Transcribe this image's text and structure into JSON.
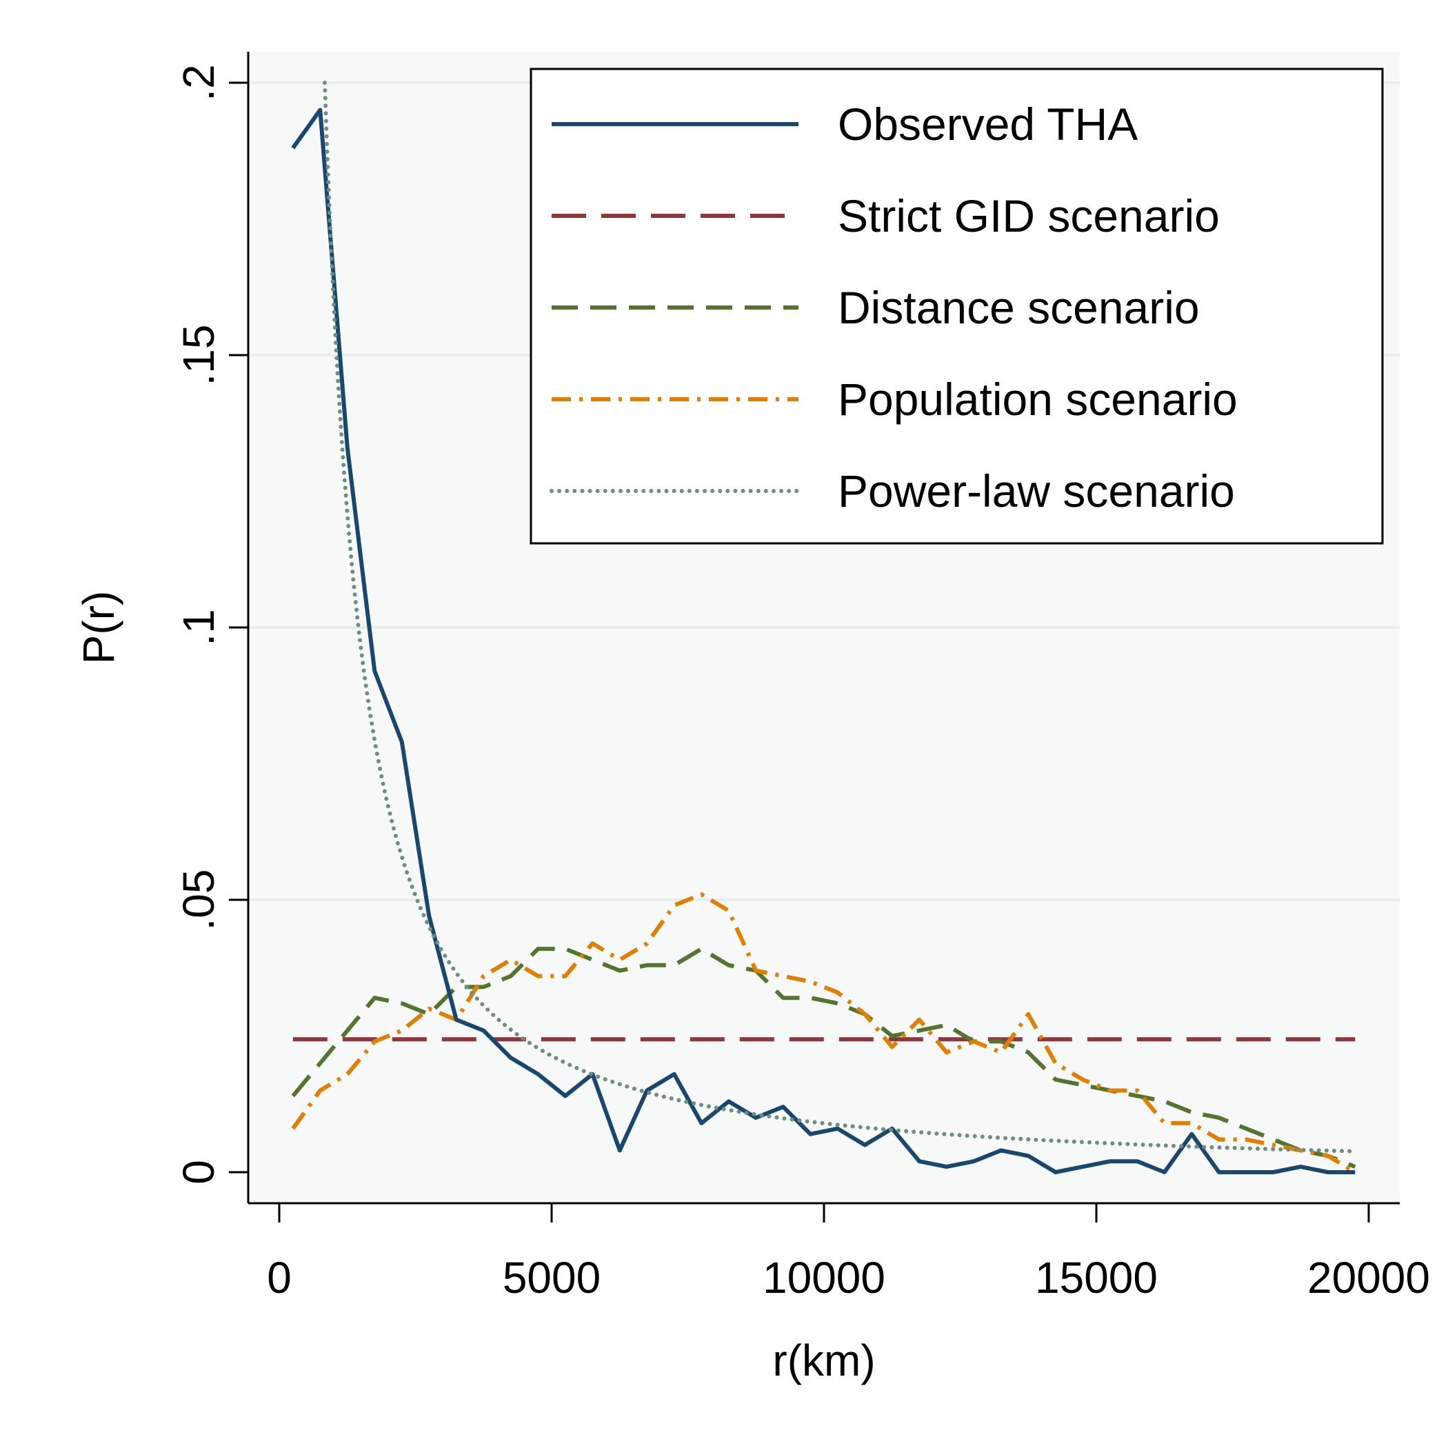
{
  "chart_data": {
    "type": "line",
    "title": "",
    "xlabel": "r(km)",
    "ylabel": "P(r)",
    "xlim": [
      0,
      20000
    ],
    "ylim": [
      0,
      0.2
    ],
    "x_ticks": [
      0,
      5000,
      10000,
      15000,
      20000
    ],
    "x_tick_labels": [
      "0",
      "5000",
      "10000",
      "15000",
      "20000"
    ],
    "y_ticks": [
      0,
      0.05,
      0.1,
      0.15,
      0.2
    ],
    "y_tick_labels": [
      "0",
      ".05",
      ".1",
      ".15",
      ".2"
    ],
    "grid": true,
    "legend_position": "top-right",
    "colors": {
      "observed": "#1a476f",
      "strict": "#90353b",
      "distance": "#55752f",
      "population": "#e37e00",
      "powerlaw": "#6e8e84",
      "plot_bg": "#f7f9f9",
      "grid": "#e6eeee"
    },
    "series": [
      {
        "name": "Observed THA",
        "key": "observed",
        "x": [
          250,
          750,
          1250,
          1750,
          2250,
          2750,
          3250,
          3750,
          4250,
          4750,
          5250,
          5750,
          6250,
          6750,
          7250,
          7750,
          8250,
          8750,
          9250,
          9750,
          10250,
          10750,
          11250,
          11750,
          12250,
          12750,
          13250,
          13750,
          14250,
          14750,
          15250,
          15750,
          16250,
          16750,
          17250,
          17750,
          18250,
          18750,
          19250,
          19750
        ],
        "values": [
          0.188,
          0.195,
          0.133,
          0.092,
          0.079,
          0.047,
          0.028,
          0.026,
          0.021,
          0.018,
          0.014,
          0.018,
          0.004,
          0.015,
          0.018,
          0.009,
          0.013,
          0.01,
          0.012,
          0.007,
          0.008,
          0.005,
          0.008,
          0.002,
          0.001,
          0.002,
          0.004,
          0.003,
          0.0,
          0.001,
          0.002,
          0.002,
          0.0,
          0.007,
          0.0,
          0.0,
          0.0,
          0.001,
          0.0,
          0.0
        ]
      },
      {
        "name": "Strict GID scenario",
        "key": "strict",
        "x": [
          250,
          19750
        ],
        "values": [
          0.0244,
          0.0244
        ]
      },
      {
        "name": "Distance scenario",
        "key": "distance",
        "x": [
          250,
          750,
          1250,
          1750,
          2250,
          2750,
          3250,
          3750,
          4250,
          4750,
          5250,
          5750,
          6250,
          6750,
          7250,
          7750,
          8250,
          8750,
          9250,
          9750,
          10250,
          10750,
          11250,
          11750,
          12250,
          12750,
          13250,
          13750,
          14250,
          14750,
          15250,
          15750,
          16250,
          16750,
          17250,
          17750,
          18250,
          18750,
          19250,
          19750
        ],
        "values": [
          0.014,
          0.02,
          0.026,
          0.032,
          0.031,
          0.029,
          0.034,
          0.034,
          0.036,
          0.041,
          0.041,
          0.039,
          0.037,
          0.038,
          0.038,
          0.041,
          0.038,
          0.037,
          0.032,
          0.032,
          0.031,
          0.029,
          0.025,
          0.026,
          0.027,
          0.024,
          0.024,
          0.022,
          0.017,
          0.016,
          0.015,
          0.014,
          0.013,
          0.011,
          0.01,
          0.008,
          0.006,
          0.004,
          0.003,
          0.001
        ]
      },
      {
        "name": "Population scenario",
        "key": "population",
        "x": [
          250,
          750,
          1250,
          1750,
          2250,
          2750,
          3250,
          3750,
          4250,
          4750,
          5250,
          5750,
          6250,
          6750,
          7250,
          7750,
          8250,
          8750,
          9250,
          9750,
          10250,
          10750,
          11250,
          11750,
          12250,
          12750,
          13250,
          13750,
          14250,
          14750,
          15250,
          15750,
          16250,
          16750,
          17250,
          17750,
          18250,
          18750,
          19250,
          19750
        ],
        "values": [
          0.008,
          0.015,
          0.018,
          0.024,
          0.026,
          0.03,
          0.028,
          0.036,
          0.039,
          0.036,
          0.036,
          0.042,
          0.039,
          0.042,
          0.049,
          0.051,
          0.048,
          0.037,
          0.036,
          0.035,
          0.033,
          0.029,
          0.023,
          0.028,
          0.022,
          0.024,
          0.022,
          0.029,
          0.02,
          0.017,
          0.015,
          0.015,
          0.009,
          0.009,
          0.006,
          0.006,
          0.005,
          0.004,
          0.003,
          0.0
        ]
      },
      {
        "name": "Power-law scenario",
        "key": "powerlaw",
        "curve": "0.2 * (r / 835)^-1.25",
        "x_start": 835,
        "x_end": 19750
      }
    ]
  }
}
